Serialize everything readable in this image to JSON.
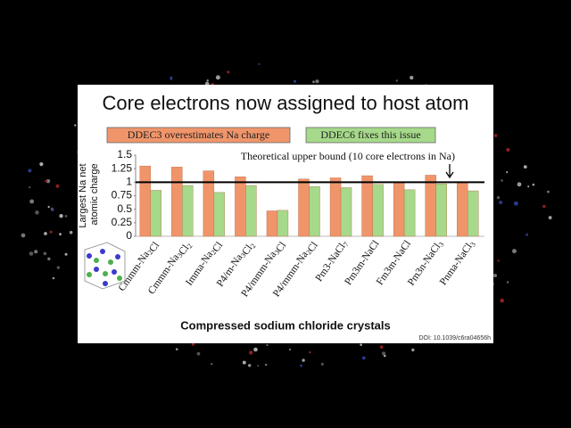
{
  "chart_data": {
    "type": "bar",
    "title": "Core electrons now assigned to host atom",
    "categories": [
      "Cmmm-Na2Cl",
      "Cmmm-Na3Cl2",
      "Imma-Na2Cl",
      "P4/m-Na3Cl2",
      "P4/mmm-Na3Cl",
      "P4/mmm-Na2Cl",
      "Pm3-NaCl7",
      "Pm3m-NaCl",
      "Fm3m-NaCl",
      "Pm3n-NaCl3",
      "Pnma-NaCl3"
    ],
    "series": [
      {
        "name": "DDEC3 overestimates Na charge",
        "color": "#f0956a",
        "values": [
          1.3,
          1.28,
          1.21,
          1.1,
          0.47,
          1.06,
          1.08,
          1.12,
          1.0,
          1.13,
          1.0
        ]
      },
      {
        "name": "DDEC6 fixes this issue",
        "color": "#a6d98a",
        "values": [
          0.85,
          0.94,
          0.81,
          0.94,
          0.48,
          0.92,
          0.9,
          0.96,
          0.86,
          0.97,
          0.84
        ]
      }
    ],
    "ylabel": "Largest Na net atomic charge",
    "xlabel": "Compressed sodium chloride crystals",
    "ylim": [
      0,
      1.5
    ],
    "yticks": [
      0,
      0.25,
      0.5,
      0.75,
      1,
      1.25,
      1.5
    ],
    "reference_line": 1,
    "annotation": "Theoretical upper bound (10 core electrons in Na)",
    "source": "DOI: 10.1039/c6ra04656h",
    "legend": "top"
  }
}
